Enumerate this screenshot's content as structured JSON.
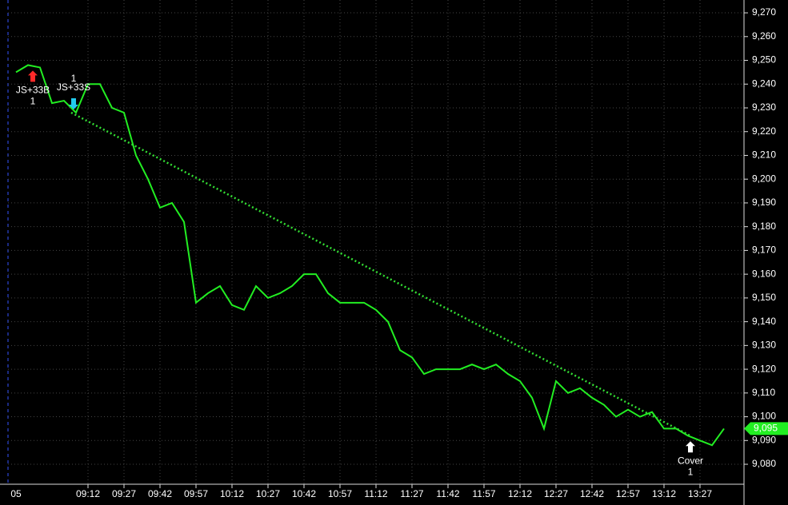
{
  "chart_data": {
    "type": "line",
    "x_date_label": "05",
    "xticks": [
      "09:12",
      "09:27",
      "09:42",
      "09:57",
      "10:12",
      "10:27",
      "10:42",
      "10:57",
      "11:12",
      "11:27",
      "11:42",
      "11:57",
      "12:12",
      "12:27",
      "12:42",
      "12:57",
      "13:12",
      "13:27"
    ],
    "ylim": [
      9071.6,
      9275.4
    ],
    "yticks": [
      {
        "value": 9080,
        "label": "9,080"
      },
      {
        "value": 9090,
        "label": "9,090"
      },
      {
        "value": 9100,
        "label": "9,100"
      },
      {
        "value": 9110,
        "label": "9,110"
      },
      {
        "value": 9120,
        "label": "9,120"
      },
      {
        "value": 9130,
        "label": "9,130"
      },
      {
        "value": 9140,
        "label": "9,140"
      },
      {
        "value": 9150,
        "label": "9,150"
      },
      {
        "value": 9160,
        "label": "9,160"
      },
      {
        "value": 9170,
        "label": "9,170"
      },
      {
        "value": 9180,
        "label": "9,180"
      },
      {
        "value": 9190,
        "label": "9,190"
      },
      {
        "value": 9200,
        "label": "9,200"
      },
      {
        "value": 9210,
        "label": "9,210"
      },
      {
        "value": 9220,
        "label": "9,220"
      },
      {
        "value": 9230,
        "label": "9,230"
      },
      {
        "value": 9240,
        "label": "9,240"
      },
      {
        "value": 9250,
        "label": "9,250"
      },
      {
        "value": 9260,
        "label": "9,260"
      },
      {
        "value": 9270,
        "label": "9,270"
      }
    ],
    "grid": true,
    "series": [
      {
        "color": "#22ee22",
        "x": [
          "08:42",
          "08:47",
          "08:52",
          "08:57",
          "09:02",
          "09:07",
          "09:12",
          "09:17",
          "09:22",
          "09:27",
          "09:32",
          "09:37",
          "09:42",
          "09:47",
          "09:52",
          "09:57",
          "10:02",
          "10:07",
          "10:12",
          "10:17",
          "10:22",
          "10:27",
          "10:32",
          "10:37",
          "10:42",
          "10:47",
          "10:52",
          "10:57",
          "11:02",
          "11:07",
          "11:12",
          "11:17",
          "11:22",
          "11:27",
          "11:32",
          "11:37",
          "11:42",
          "11:47",
          "11:52",
          "11:57",
          "12:02",
          "12:07",
          "12:12",
          "12:17",
          "12:22",
          "12:27",
          "12:32",
          "12:37",
          "12:42",
          "12:47",
          "12:52",
          "12:57",
          "13:02",
          "13:07",
          "13:12",
          "13:17",
          "13:22",
          "13:27",
          "13:32",
          "13:37"
        ],
        "values": [
          9245,
          9248,
          9247,
          9232,
          9233,
          9228,
          9240,
          9240,
          9230,
          9228,
          9210,
          9200,
          9188,
          9190,
          9182,
          9148,
          9152,
          9155,
          9147,
          9145,
          9155,
          9150,
          9152,
          9155,
          9160,
          9160,
          9152,
          9148,
          9148,
          9148,
          9145,
          9140,
          9128,
          9125,
          9118,
          9120,
          9120,
          9120,
          9122,
          9120,
          9122,
          9118,
          9115,
          9108,
          9095,
          9115,
          9110,
          9112,
          9108,
          9105,
          9100,
          9103,
          9100,
          9102,
          9095,
          9095,
          9092,
          9090,
          9088,
          9095
        ]
      },
      {
        "color": "#33dd33",
        "dotted": true,
        "x": [
          "09:05",
          "13:23"
        ],
        "values": [
          9228,
          9092
        ]
      }
    ],
    "last_price": {
      "value": 9095,
      "label": "9,095"
    },
    "trades": [
      {
        "label": "JS+33B",
        "qty": "1",
        "x": "08:49",
        "price": 9243,
        "dir": "up",
        "color": "#ff2a2a"
      },
      {
        "label": "JS+33S",
        "qty": "1",
        "x": "09:06",
        "price": 9232,
        "dir": "down",
        "color": "#22ccee"
      },
      {
        "label": "Cover",
        "qty": "1",
        "x": "13:23",
        "price": 9087,
        "dir": "up",
        "color": "#ffffff"
      }
    ]
  }
}
